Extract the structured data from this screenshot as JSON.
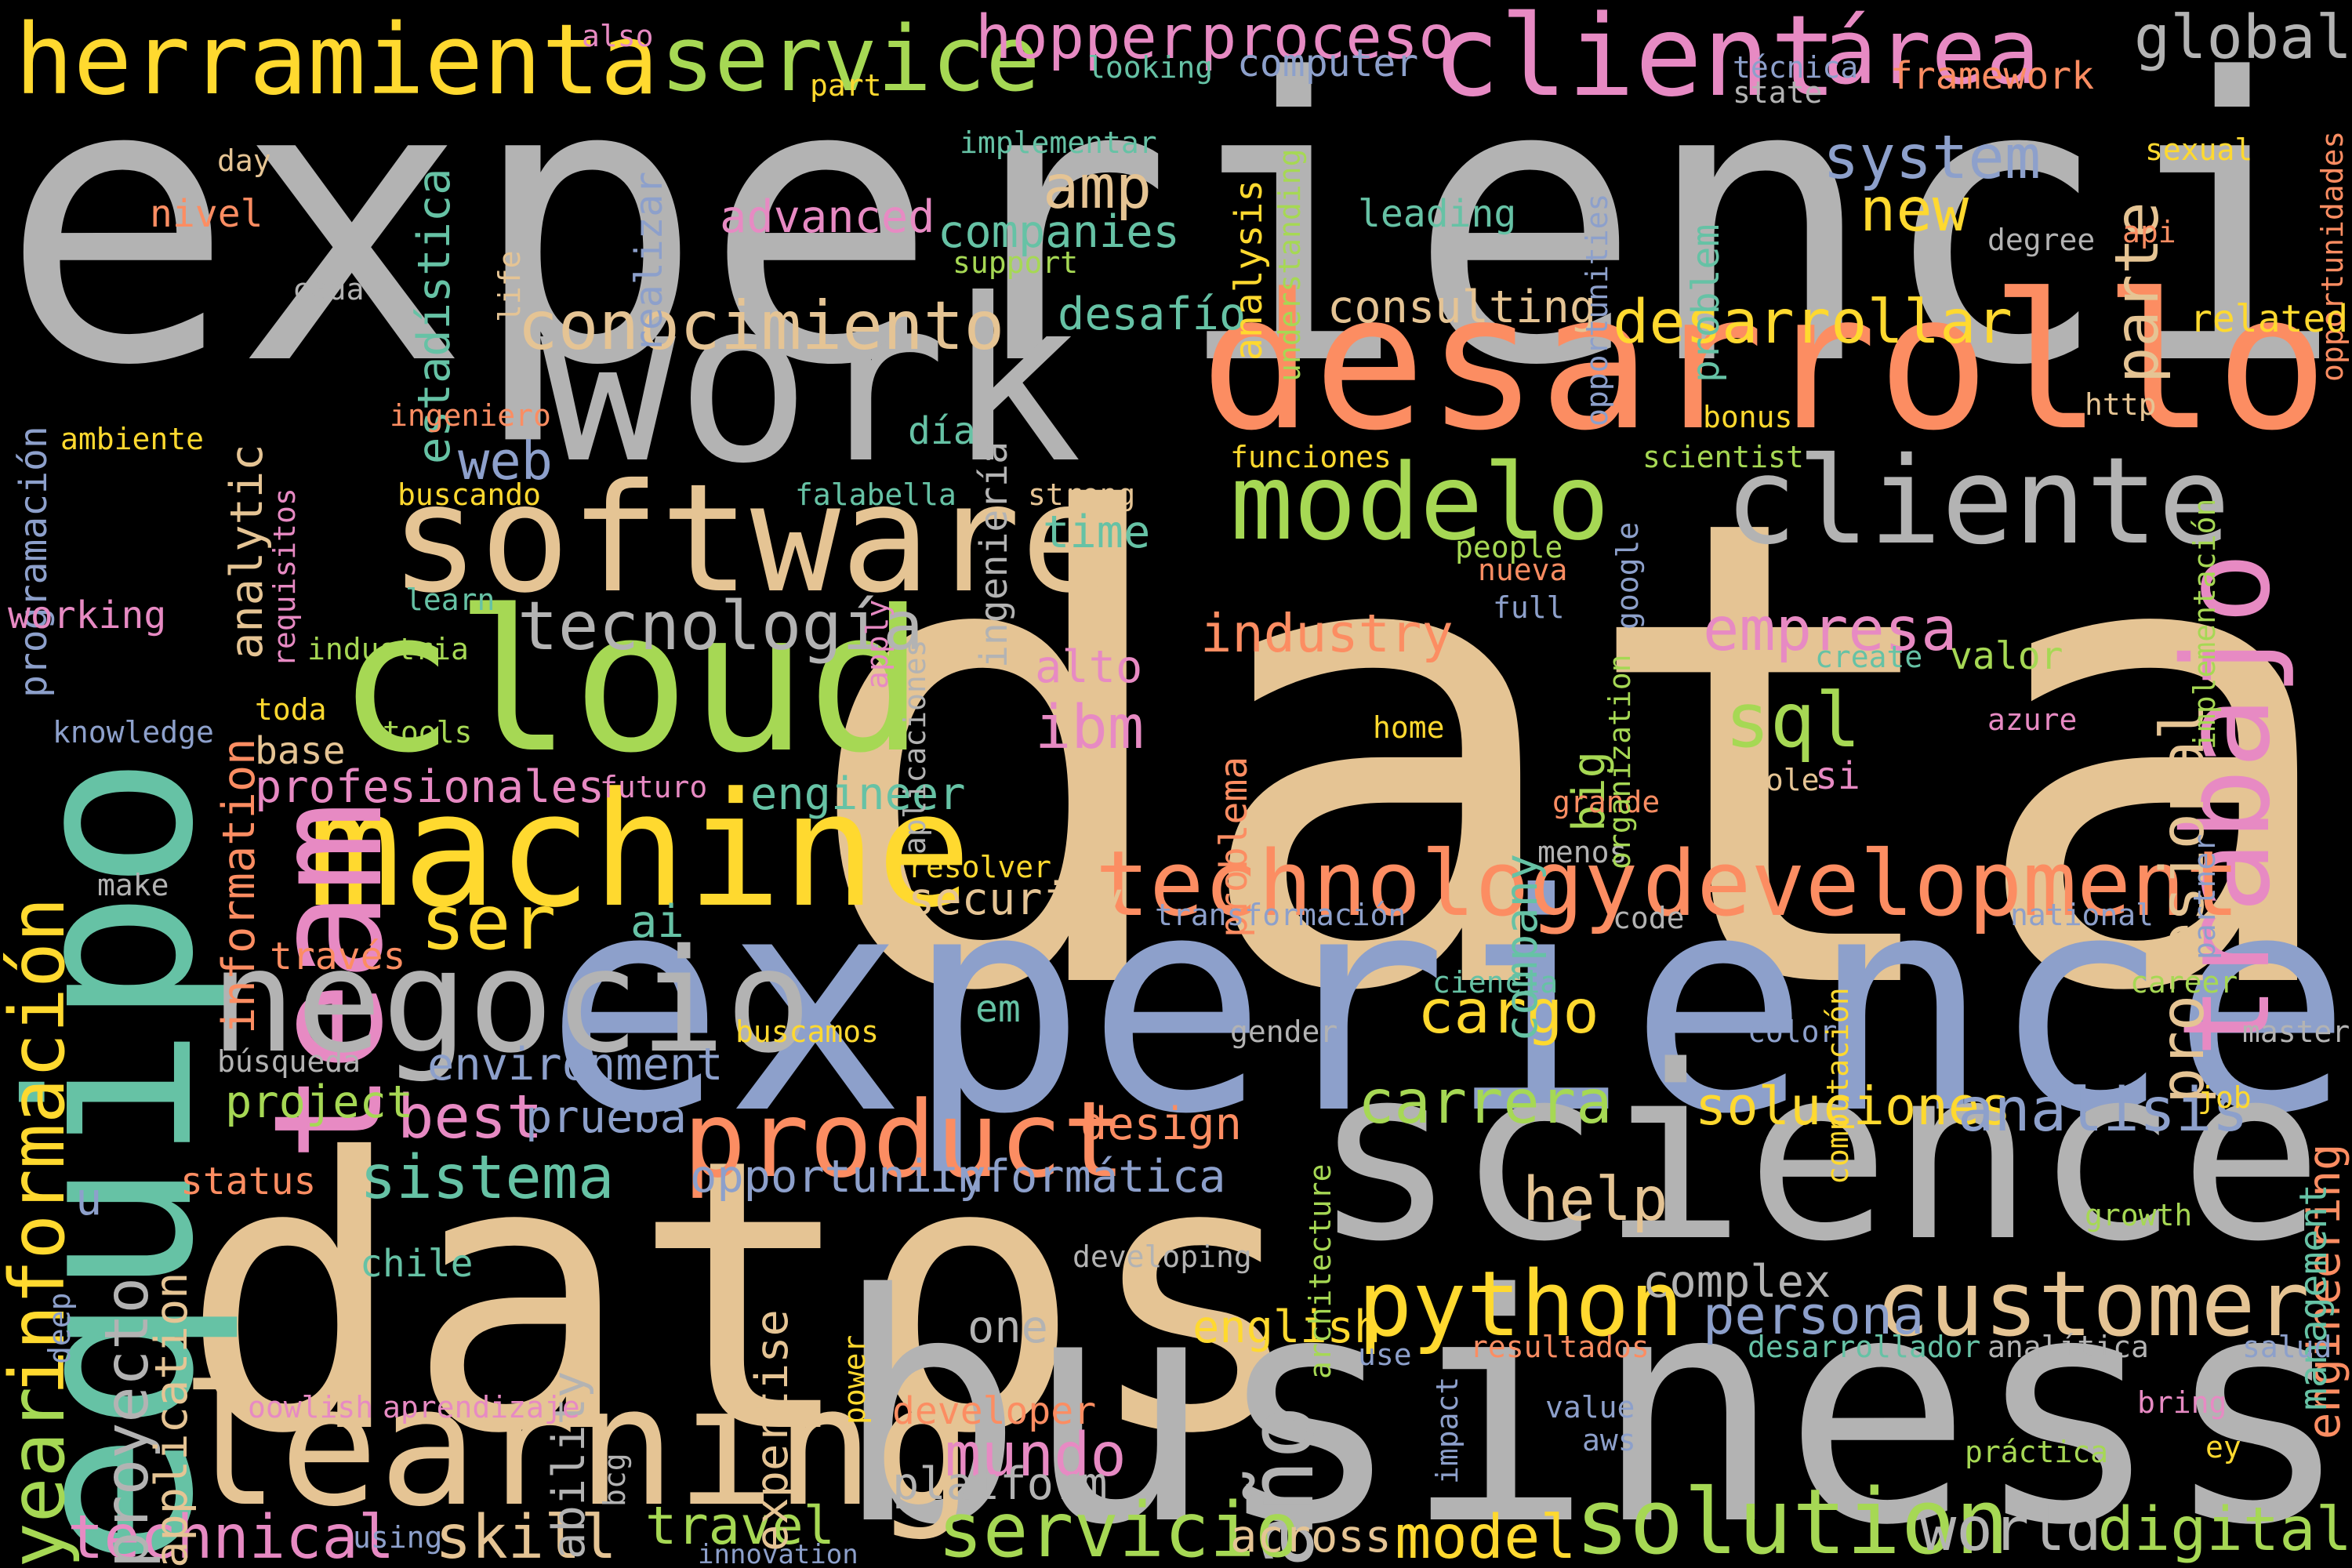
{
  "words": [
    {
      "text": "data",
      "color": "#e5c494",
      "vertical": false
    },
    {
      "text": "experiencia",
      "color": "#b3b3b3",
      "vertical": false
    },
    {
      "text": "experience",
      "color": "#8da0cb",
      "vertical": false
    },
    {
      "text": "datos",
      "color": "#e5c494",
      "vertical": false
    },
    {
      "text": "business",
      "color": "#b3b3b3",
      "vertical": false
    },
    {
      "text": "science",
      "color": "#b3b3b3",
      "vertical": false
    },
    {
      "text": "work",
      "color": "#b3b3b3",
      "vertical": false
    },
    {
      "text": "desarrollo",
      "color": "#fc8d62",
      "vertical": false
    },
    {
      "text": "equipo",
      "color": "#66c2a5",
      "vertical": true
    },
    {
      "text": "cloud",
      "color": "#a6d854",
      "vertical": false
    },
    {
      "text": "software",
      "color": "#e5c494",
      "vertical": false
    },
    {
      "text": "machine",
      "color": "#ffd92f",
      "vertical": false
    },
    {
      "text": "learning",
      "color": "#e5c494",
      "vertical": false
    },
    {
      "text": "team",
      "color": "#e78ac3",
      "vertical": true
    },
    {
      "text": "negocio",
      "color": "#b3b3b3",
      "vertical": false
    },
    {
      "text": "cliente",
      "color": "#b3b3b3",
      "vertical": false
    },
    {
      "text": "modelo",
      "color": "#a6d854",
      "vertical": false
    },
    {
      "text": "herramienta",
      "color": "#ffd92f",
      "vertical": false
    },
    {
      "text": "client",
      "color": "#e78ac3",
      "vertical": false
    },
    {
      "text": "service",
      "color": "#a6d854",
      "vertical": false
    },
    {
      "text": "trabajo",
      "color": "#e78ac3",
      "vertical": true
    },
    {
      "text": "product",
      "color": "#fc8d62",
      "vertical": false
    },
    {
      "text": "development",
      "color": "#fc8d62",
      "vertical": false
    },
    {
      "text": "customer",
      "color": "#e5c494",
      "vertical": false
    },
    {
      "text": "python",
      "color": "#ffd92f",
      "vertical": false
    },
    {
      "text": "technology",
      "color": "#fc8d62",
      "vertical": false
    },
    {
      "text": "solution",
      "color": "#a6d854",
      "vertical": false
    },
    {
      "text": "año",
      "color": "#b3b3b3",
      "vertical": true
    },
    {
      "text": "área",
      "color": "#e78ac3",
      "vertical": false
    },
    {
      "text": "información",
      "color": "#ffd92f",
      "vertical": true
    },
    {
      "text": "year",
      "color": "#a6d854",
      "vertical": true
    },
    {
      "text": "conocimiento",
      "color": "#e5c494",
      "vertical": false
    },
    {
      "text": "tecnología",
      "color": "#b3b3b3",
      "vertical": false
    },
    {
      "text": "servicio",
      "color": "#a6d854",
      "vertical": false
    },
    {
      "text": "proceso",
      "color": "#e78ac3",
      "vertical": false
    },
    {
      "text": "hopper",
      "color": "#e78ac3",
      "vertical": false
    },
    {
      "text": "desarrollar",
      "color": "#ffd92f",
      "vertical": false
    },
    {
      "text": "empresa",
      "color": "#e78ac3",
      "vertical": false
    },
    {
      "text": "sql",
      "color": "#a6d854",
      "vertical": false
    },
    {
      "text": "mundo",
      "color": "#e78ac3",
      "vertical": false
    },
    {
      "text": "skill",
      "color": "#e5c494",
      "vertical": false
    },
    {
      "text": "technical",
      "color": "#e78ac3",
      "vertical": false
    },
    {
      "text": "global",
      "color": "#b3b3b3",
      "vertical": false
    },
    {
      "text": "system",
      "color": "#8da0cb",
      "vertical": false
    },
    {
      "text": "new",
      "color": "#ffd92f",
      "vertical": false
    },
    {
      "text": "amp",
      "color": "#e5c494",
      "vertical": false
    },
    {
      "text": "companies",
      "color": "#66c2a5",
      "vertical": false
    },
    {
      "text": "advanced",
      "color": "#e78ac3",
      "vertical": false
    },
    {
      "text": "consulting",
      "color": "#e5c494",
      "vertical": false
    },
    {
      "text": "desafío",
      "color": "#66c2a5",
      "vertical": false
    },
    {
      "text": "parte",
      "color": "#e5c494",
      "vertical": true
    },
    {
      "text": "profesional",
      "color": "#e5c494",
      "vertical": true
    },
    {
      "text": "analytic",
      "color": "#e5c494",
      "vertical": true
    },
    {
      "text": "web",
      "color": "#8da0cb",
      "vertical": false
    },
    {
      "text": "time",
      "color": "#66c2a5",
      "vertical": false
    },
    {
      "text": "industry",
      "color": "#fc8d62",
      "vertical": false
    },
    {
      "text": "ibm",
      "color": "#e78ac3",
      "vertical": false
    },
    {
      "text": "alto",
      "color": "#e78ac3",
      "vertical": false
    },
    {
      "text": "ser",
      "color": "#ffd92f",
      "vertical": false
    },
    {
      "text": "ai",
      "color": "#66c2a5",
      "vertical": false
    },
    {
      "text": "security",
      "color": "#e5c494",
      "vertical": false
    },
    {
      "text": "cargo",
      "color": "#ffd92f",
      "vertical": false
    },
    {
      "text": "carrera",
      "color": "#a6d854",
      "vertical": false
    },
    {
      "text": "soluciones",
      "color": "#ffd92f",
      "vertical": false
    },
    {
      "text": "análisis",
      "color": "#8da0cb",
      "vertical": false
    },
    {
      "text": "best",
      "color": "#e78ac3",
      "vertical": false
    },
    {
      "text": "prueba",
      "color": "#8da0cb",
      "vertical": false
    },
    {
      "text": "sistema",
      "color": "#66c2a5",
      "vertical": false
    },
    {
      "text": "project",
      "color": "#a6d854",
      "vertical": false
    },
    {
      "text": "environment",
      "color": "#8da0cb",
      "vertical": false
    },
    {
      "text": "help",
      "color": "#e5c494",
      "vertical": false
    },
    {
      "text": "design",
      "color": "#fc8d62",
      "vertical": false
    },
    {
      "text": "informática",
      "color": "#8da0cb",
      "vertical": false
    },
    {
      "text": "opportunity",
      "color": "#8da0cb",
      "vertical": false
    },
    {
      "text": "persona",
      "color": "#8da0cb",
      "vertical": false
    },
    {
      "text": "complex",
      "color": "#b3b3b3",
      "vertical": false
    },
    {
      "text": "english",
      "color": "#ffd92f",
      "vertical": false
    },
    {
      "text": "one",
      "color": "#b3b3b3",
      "vertical": false
    },
    {
      "text": "model",
      "color": "#ffd92f",
      "vertical": false
    },
    {
      "text": "across",
      "color": "#e5c494",
      "vertical": false
    },
    {
      "text": "world",
      "color": "#b3b3b3",
      "vertical": false
    },
    {
      "text": "digital",
      "color": "#a6d854",
      "vertical": false
    },
    {
      "text": "platform",
      "color": "#b3b3b3",
      "vertical": false
    },
    {
      "text": "travel",
      "color": "#a6d854",
      "vertical": false
    },
    {
      "text": "developer",
      "color": "#fc8d62",
      "vertical": false
    },
    {
      "text": "proyecto",
      "color": "#b3b3b3",
      "vertical": true
    },
    {
      "text": "application",
      "color": "#e5c494",
      "vertical": true
    },
    {
      "text": "expertise",
      "color": "#e5c494",
      "vertical": true
    },
    {
      "text": "information",
      "color": "#fc8d62",
      "vertical": true
    },
    {
      "text": "engineer",
      "color": "#66c2a5",
      "vertical": false
    },
    {
      "text": "profesionales",
      "color": "#e78ac3",
      "vertical": false
    },
    {
      "text": "company",
      "color": "#66c2a5",
      "vertical": true
    },
    {
      "text": "big",
      "color": "#a6d854",
      "vertical": true
    },
    {
      "text": "engineering",
      "color": "#fc8d62",
      "vertical": true
    },
    {
      "text": "estadística",
      "color": "#66c2a5",
      "vertical": true
    },
    {
      "text": "programación",
      "color": "#8da0cb",
      "vertical": true
    },
    {
      "text": "realizar",
      "color": "#8da0cb",
      "vertical": true
    },
    {
      "text": "analysis",
      "color": "#ffd92f",
      "vertical": true
    },
    {
      "text": "problem",
      "color": "#66c2a5",
      "vertical": true
    },
    {
      "text": "ingeniería",
      "color": "#b3b3b3",
      "vertical": true
    },
    {
      "text": "ability",
      "color": "#b3b3b3",
      "vertical": true
    },
    {
      "text": "management",
      "color": "#66c2a5",
      "vertical": true
    },
    {
      "text": "problema",
      "color": "#fc8d62",
      "vertical": true
    },
    {
      "text": "opportunidades",
      "color": "#fc8d62",
      "vertical": true
    },
    {
      "text": "opportunities",
      "color": "#8da0cb",
      "vertical": true
    },
    {
      "text": "u",
      "color": "#8da0cb",
      "vertical": false
    },
    {
      "text": "implementar",
      "color": "#66c2a5",
      "vertical": false
    },
    {
      "text": "support",
      "color": "#a6d854",
      "vertical": false
    },
    {
      "text": "computer",
      "color": "#8da0cb",
      "vertical": false
    },
    {
      "text": "looking",
      "color": "#66c2a5",
      "vertical": false
    },
    {
      "text": "leading",
      "color": "#66c2a5",
      "vertical": false
    },
    {
      "text": "técnica",
      "color": "#8da0cb",
      "vertical": false
    },
    {
      "text": "framework",
      "color": "#fc8d62",
      "vertical": false
    },
    {
      "text": "state",
      "color": "#b3b3b3",
      "vertical": false
    },
    {
      "text": "sexual",
      "color": "#ffd92f",
      "vertical": false
    },
    {
      "text": "degree",
      "color": "#b3b3b3",
      "vertical": false
    },
    {
      "text": "api",
      "color": "#fc8d62",
      "vertical": false
    },
    {
      "text": "related",
      "color": "#ffd92f",
      "vertical": false
    },
    {
      "text": "http",
      "color": "#e5c494",
      "vertical": false
    },
    {
      "text": "bonus",
      "color": "#ffd92f",
      "vertical": false
    },
    {
      "text": "scientist",
      "color": "#a6d854",
      "vertical": false
    },
    {
      "text": "funciones",
      "color": "#ffd92f",
      "vertical": false
    },
    {
      "text": "día",
      "color": "#66c2a5",
      "vertical": false
    },
    {
      "text": "falabella",
      "color": "#66c2a5",
      "vertical": false
    },
    {
      "text": "strong",
      "color": "#e5c494",
      "vertical": false
    },
    {
      "text": "people",
      "color": "#a6d854",
      "vertical": false
    },
    {
      "text": "nueva",
      "color": "#fc8d62",
      "vertical": false
    },
    {
      "text": "full",
      "color": "#8da0cb",
      "vertical": false
    },
    {
      "text": "create",
      "color": "#66c2a5",
      "vertical": false
    },
    {
      "text": "valor",
      "color": "#a6d854",
      "vertical": false
    },
    {
      "text": "azure",
      "color": "#e78ac3",
      "vertical": false
    },
    {
      "text": "home",
      "color": "#ffd92f",
      "vertical": false
    },
    {
      "text": "role",
      "color": "#e5c494",
      "vertical": false
    },
    {
      "text": "si",
      "color": "#e78ac3",
      "vertical": false
    },
    {
      "text": "grande",
      "color": "#fc8d62",
      "vertical": false
    },
    {
      "text": "menos",
      "color": "#b3b3b3",
      "vertical": false
    },
    {
      "text": "resolver",
      "color": "#ffd92f",
      "vertical": false
    },
    {
      "text": "transformación",
      "color": "#8da0cb",
      "vertical": false
    },
    {
      "text": "code",
      "color": "#b3b3b3",
      "vertical": false
    },
    {
      "text": "national",
      "color": "#8da0cb",
      "vertical": false
    },
    {
      "text": "ciencia",
      "color": "#66c2a5",
      "vertical": false
    },
    {
      "text": "career",
      "color": "#a6d854",
      "vertical": false
    },
    {
      "text": "gender",
      "color": "#b3b3b3",
      "vertical": false
    },
    {
      "text": "color",
      "color": "#8da0cb",
      "vertical": false
    },
    {
      "text": "master",
      "color": "#b3b3b3",
      "vertical": false
    },
    {
      "text": "job",
      "color": "#ffd92f",
      "vertical": false
    },
    {
      "text": "growth",
      "color": "#a6d854",
      "vertical": false
    },
    {
      "text": "developing",
      "color": "#b3b3b3",
      "vertical": false
    },
    {
      "text": "resultados",
      "color": "#fc8d62",
      "vertical": false
    },
    {
      "text": "analítica",
      "color": "#b3b3b3",
      "vertical": false
    },
    {
      "text": "salud",
      "color": "#8da0cb",
      "vertical": false
    },
    {
      "text": "use",
      "color": "#8da0cb",
      "vertical": false
    },
    {
      "text": "desarrollador",
      "color": "#66c2a5",
      "vertical": false
    },
    {
      "text": "value",
      "color": "#8da0cb",
      "vertical": false
    },
    {
      "text": "aws",
      "color": "#8da0cb",
      "vertical": false
    },
    {
      "text": "práctica",
      "color": "#a6d854",
      "vertical": false
    },
    {
      "text": "bring",
      "color": "#e78ac3",
      "vertical": false
    },
    {
      "text": "ey",
      "color": "#ffd92f",
      "vertical": false
    },
    {
      "text": "innovation",
      "color": "#8da0cb",
      "vertical": false
    },
    {
      "text": "using",
      "color": "#8da0cb",
      "vertical": false
    },
    {
      "text": "aprendizaje",
      "color": "#e78ac3",
      "vertical": false
    },
    {
      "text": "oowlish",
      "color": "#e78ac3",
      "vertical": false
    },
    {
      "text": "búsqueda",
      "color": "#b3b3b3",
      "vertical": false
    },
    {
      "text": "buscamos",
      "color": "#ffd92f",
      "vertical": false
    },
    {
      "text": "em",
      "color": "#66c2a5",
      "vertical": false
    },
    {
      "text": "status",
      "color": "#fc8d62",
      "vertical": false
    },
    {
      "text": "chile",
      "color": "#66c2a5",
      "vertical": false
    },
    {
      "text": "través",
      "color": "#fc8d62",
      "vertical": false
    },
    {
      "text": "make",
      "color": "#b3b3b3",
      "vertical": false
    },
    {
      "text": "futuro",
      "color": "#e78ac3",
      "vertical": false
    },
    {
      "text": "knowledge",
      "color": "#8da0cb",
      "vertical": false
    },
    {
      "text": "tools",
      "color": "#a6d854",
      "vertical": false
    },
    {
      "text": "toda",
      "color": "#ffd92f",
      "vertical": false
    },
    {
      "text": "base",
      "color": "#e5c494",
      "vertical": false
    },
    {
      "text": "industria",
      "color": "#a6d854",
      "vertical": false
    },
    {
      "text": "learn",
      "color": "#66c2a5",
      "vertical": false
    },
    {
      "text": "working",
      "color": "#e78ac3",
      "vertical": false
    },
    {
      "text": "buscando",
      "color": "#ffd92f",
      "vertical": false
    },
    {
      "text": "ambiente",
      "color": "#ffd92f",
      "vertical": false
    },
    {
      "text": "ingeniero",
      "color": "#fc8d62",
      "vertical": false
    },
    {
      "text": "cada",
      "color": "#b3b3b3",
      "vertical": false
    },
    {
      "text": "nivel",
      "color": "#fc8d62",
      "vertical": false
    },
    {
      "text": "day",
      "color": "#e5c494",
      "vertical": false
    },
    {
      "text": "also",
      "color": "#e78ac3",
      "vertical": false
    },
    {
      "text": "part",
      "color": "#ffd92f",
      "vertical": false
    },
    {
      "text": "life",
      "color": "#e5c494",
      "vertical": true
    },
    {
      "text": "understanding",
      "color": "#a6d854",
      "vertical": true
    },
    {
      "text": "requisitos",
      "color": "#e78ac3",
      "vertical": true
    },
    {
      "text": "apply",
      "color": "#e78ac3",
      "vertical": true
    },
    {
      "text": "aplicaciones",
      "color": "#b3b3b3",
      "vertical": true
    },
    {
      "text": "google",
      "color": "#8da0cb",
      "vertical": true
    },
    {
      "text": "organization",
      "color": "#a6d854",
      "vertical": true
    },
    {
      "text": "implementación",
      "color": "#a6d854",
      "vertical": true
    },
    {
      "text": "partner",
      "color": "#8da0cb",
      "vertical": true
    },
    {
      "text": "computación",
      "color": "#ffd92f",
      "vertical": true
    },
    {
      "text": "architecture",
      "color": "#a6d854",
      "vertical": true
    },
    {
      "text": "power",
      "color": "#ffd92f",
      "vertical": true
    },
    {
      "text": "impact",
      "color": "#8da0cb",
      "vertical": true
    },
    {
      "text": "bcg",
      "color": "#b3b3b3",
      "vertical": true
    },
    {
      "text": "deep",
      "color": "#8da0cb",
      "vertical": true
    }
  ]
}
